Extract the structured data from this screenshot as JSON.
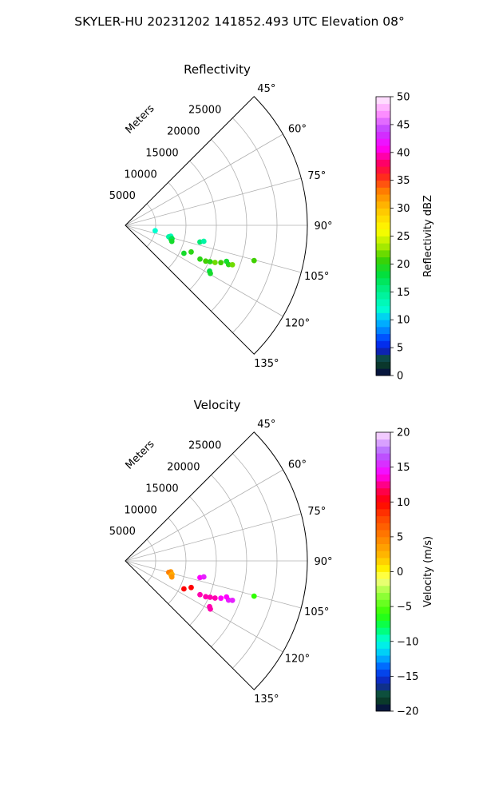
{
  "figure": {
    "suptitle": "SKYLER-HU  20231202  141852.493 UTC Elevation 08°"
  },
  "chart_data": [
    {
      "type": "scatter",
      "projection": "polar-sector",
      "title": "Reflectivity",
      "radius_label": "Meters",
      "theta_min_deg": 45,
      "theta_max_deg": 135,
      "theta_ticks": [
        45,
        60,
        75,
        90,
        105,
        120,
        135
      ],
      "theta_tick_labels": [
        "45°",
        "60°",
        "75°",
        "90°",
        "105°",
        "120°",
        "135°"
      ],
      "r_max": 30000,
      "r_ticks": [
        5000,
        10000,
        15000,
        20000,
        25000
      ],
      "r_tick_labels": [
        "5000",
        "10000",
        "15000",
        "20000",
        "25000"
      ],
      "grid": true,
      "colorbar": {
        "label": "Reflectivity dBZ",
        "vmin": 0,
        "vmax": 50,
        "ticks": [
          0,
          5,
          10,
          15,
          20,
          25,
          30,
          35,
          40,
          45,
          50
        ],
        "tick_labels": [
          "0",
          "5",
          "10",
          "15",
          "20",
          "25",
          "30",
          "35",
          "40",
          "45",
          "50"
        ]
      },
      "points": [
        {
          "theta": 100.2,
          "r": 5000,
          "value": 12
        },
        {
          "theta": 103.5,
          "r": 7700,
          "value": 13
        },
        {
          "theta": 104.8,
          "r": 7400,
          "value": 14
        },
        {
          "theta": 106.0,
          "r": 8000,
          "value": 18
        },
        {
          "theta": 107.2,
          "r": 7900,
          "value": 17
        },
        {
          "theta": 109.0,
          "r": 8100,
          "value": 19
        },
        {
          "theta": 115.5,
          "r": 10700,
          "value": 19
        },
        {
          "theta": 112.0,
          "r": 11700,
          "value": 20
        },
        {
          "theta": 102.6,
          "r": 12600,
          "value": 16
        },
        {
          "theta": 101.5,
          "r": 13200,
          "value": 14
        },
        {
          "theta": 114.3,
          "r": 13500,
          "value": 20
        },
        {
          "theta": 114.0,
          "r": 14500,
          "value": 21
        },
        {
          "theta": 113.2,
          "r": 15200,
          "value": 20
        },
        {
          "theta": 112.5,
          "r": 16000,
          "value": 22
        },
        {
          "theta": 111.3,
          "r": 16900,
          "value": 21
        },
        {
          "theta": 110.8,
          "r": 18200,
          "value": 20
        },
        {
          "theta": 110.2,
          "r": 18800,
          "value": 22
        },
        {
          "theta": 109.6,
          "r": 17700,
          "value": 19
        },
        {
          "theta": 118.5,
          "r": 15800,
          "value": 18
        },
        {
          "theta": 119.5,
          "r": 16100,
          "value": 19
        },
        {
          "theta": 105.3,
          "r": 22000,
          "value": 21
        }
      ]
    },
    {
      "type": "scatter",
      "projection": "polar-sector",
      "title": "Velocity",
      "radius_label": "Meters",
      "theta_min_deg": 45,
      "theta_max_deg": 135,
      "theta_ticks": [
        45,
        60,
        75,
        90,
        105,
        120,
        135
      ],
      "theta_tick_labels": [
        "45°",
        "60°",
        "75°",
        "90°",
        "105°",
        "120°",
        "135°"
      ],
      "r_max": 30000,
      "r_ticks": [
        5000,
        10000,
        15000,
        20000,
        25000
      ],
      "r_tick_labels": [
        "5000",
        "10000",
        "15000",
        "20000",
        "25000"
      ],
      "grid": true,
      "colorbar": {
        "label": "Velocity (m/s)",
        "vmin": -20,
        "vmax": 20,
        "ticks": [
          -20,
          -15,
          -10,
          -5,
          0,
          5,
          10,
          15,
          20
        ],
        "tick_labels": [
          "−20",
          "−15",
          "−10",
          "−5",
          "0",
          "5",
          "10",
          "15",
          "20"
        ]
      },
      "points": [
        {
          "theta": 103.5,
          "r": 7700,
          "value": 4
        },
        {
          "theta": 104.8,
          "r": 7400,
          "value": 5
        },
        {
          "theta": 106.0,
          "r": 8000,
          "value": 3
        },
        {
          "theta": 107.2,
          "r": 7900,
          "value": 3
        },
        {
          "theta": 109.0,
          "r": 8100,
          "value": 4
        },
        {
          "theta": 115.5,
          "r": 10700,
          "value": 10
        },
        {
          "theta": 112.0,
          "r": 11700,
          "value": 10
        },
        {
          "theta": 102.6,
          "r": 12600,
          "value": 14
        },
        {
          "theta": 101.5,
          "r": 13200,
          "value": 15
        },
        {
          "theta": 114.3,
          "r": 13500,
          "value": 13
        },
        {
          "theta": 114.0,
          "r": 14500,
          "value": 13
        },
        {
          "theta": 113.2,
          "r": 15200,
          "value": 13
        },
        {
          "theta": 112.5,
          "r": 16000,
          "value": 13
        },
        {
          "theta": 111.3,
          "r": 16900,
          "value": 14
        },
        {
          "theta": 110.8,
          "r": 18200,
          "value": 15
        },
        {
          "theta": 110.2,
          "r": 18800,
          "value": 15
        },
        {
          "theta": 109.6,
          "r": 17700,
          "value": 14
        },
        {
          "theta": 118.5,
          "r": 15800,
          "value": 13
        },
        {
          "theta": 119.5,
          "r": 16100,
          "value": 13
        },
        {
          "theta": 105.3,
          "r": 22000,
          "value": -6
        }
      ]
    }
  ]
}
